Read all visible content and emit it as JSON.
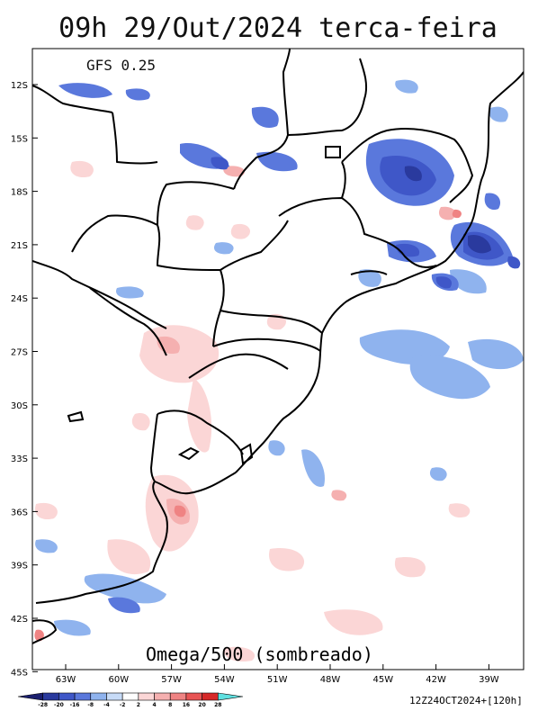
{
  "title": "09h 29/Out/2024 terca-feira",
  "model": "GFS 0.25",
  "caption": "Omega/500 (sombreado)",
  "run_info": "12Z24OCT2024+[120h]",
  "lat_labels": [
    "12S",
    "15S",
    "18S",
    "21S",
    "24S",
    "27S",
    "30S",
    "33S",
    "36S",
    "39S",
    "42S",
    "45S"
  ],
  "lon_labels": [
    "63W",
    "60W",
    "57W",
    "54W",
    "51W",
    "48W",
    "45W",
    "42W",
    "39W"
  ],
  "colorbar": {
    "labels": [
      "-28",
      "-20",
      "-16",
      "-8",
      "-4",
      "-2",
      "2",
      "4",
      "8",
      "16",
      "20",
      "28"
    ],
    "colors": [
      "#1b1f6e",
      "#2a3a9e",
      "#3f57c8",
      "#5a78dc",
      "#8fb3ee",
      "#c7dbf7",
      "#ffffff",
      "#fbd6d6",
      "#f5b0b0",
      "#ef8383",
      "#e85454",
      "#d62828",
      "#5fe0e0"
    ]
  },
  "colors": {
    "ascent_strong": "#3f57c8",
    "ascent_mid": "#5a78dc",
    "ascent_weak": "#8fb3ee",
    "descent_weak": "#fbd6d6",
    "descent_mid": "#f5b0b0",
    "descent_strong": "#ef8383",
    "border": "#000000"
  }
}
